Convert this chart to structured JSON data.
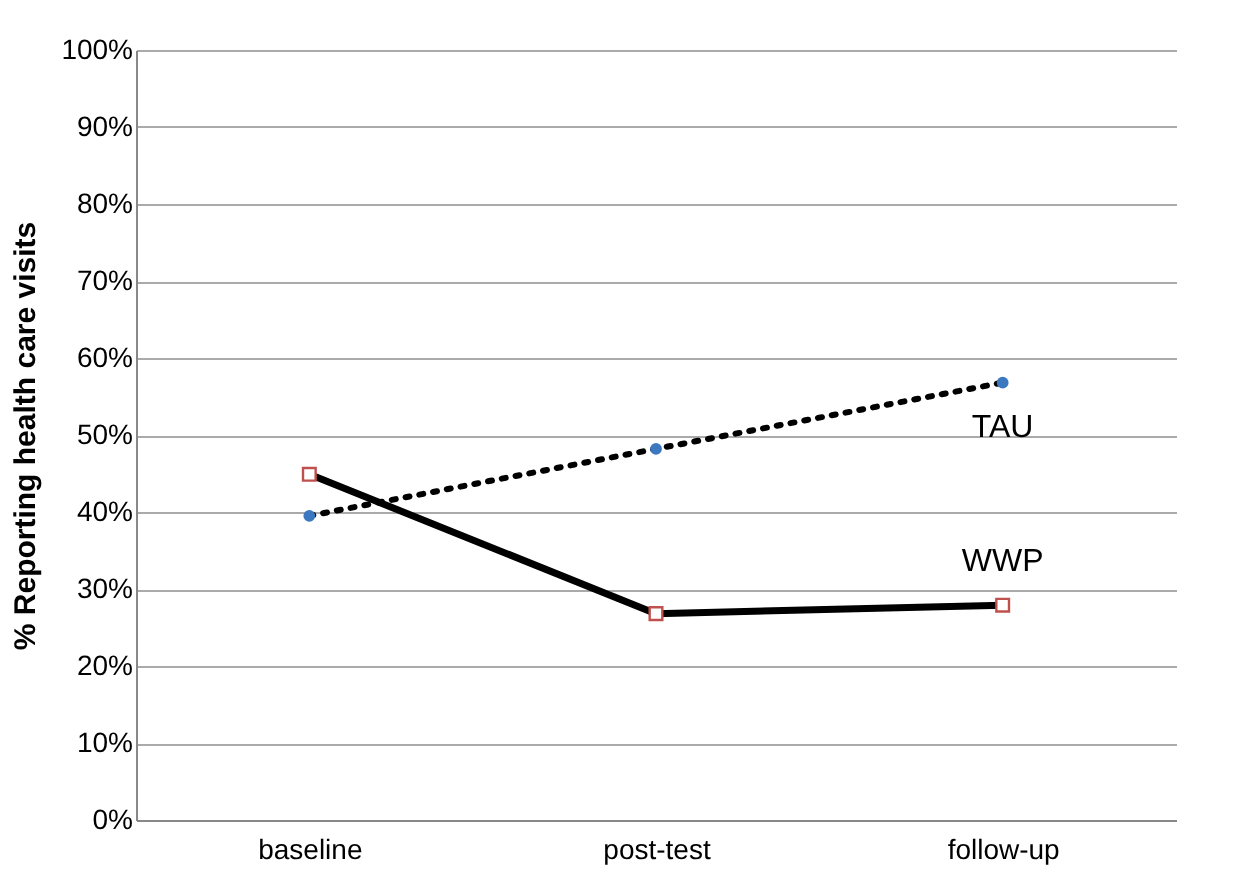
{
  "chart_data": {
    "type": "line",
    "ylabel": "% Reporting  health care visits",
    "categories": [
      "baseline",
      "post-test",
      "follow-up"
    ],
    "series": [
      {
        "name": "TAU",
        "color": "#000000",
        "values": [
          39.5,
          48.2,
          56.8
        ],
        "marker": "circle",
        "line_style": "dotted"
      },
      {
        "name": "WWP",
        "color": "#000000",
        "values": [
          44.9,
          26.8,
          27.9
        ],
        "marker": "square",
        "line_style": "solid"
      }
    ],
    "ylim": [
      0,
      100
    ],
    "yticks": [
      {
        "value": 0,
        "label": "0%"
      },
      {
        "value": 10,
        "label": "10%"
      },
      {
        "value": 20,
        "label": "20%"
      },
      {
        "value": 30,
        "label": "30%"
      },
      {
        "value": 40,
        "label": "40%"
      },
      {
        "value": 50,
        "label": "50%"
      },
      {
        "value": 60,
        "label": "60%"
      },
      {
        "value": 70,
        "label": "70%"
      },
      {
        "value": 80,
        "label": "80%"
      },
      {
        "value": 90,
        "label": "90%"
      },
      {
        "value": 100,
        "label": "100%"
      }
    ],
    "grid": "y",
    "legend": false
  }
}
